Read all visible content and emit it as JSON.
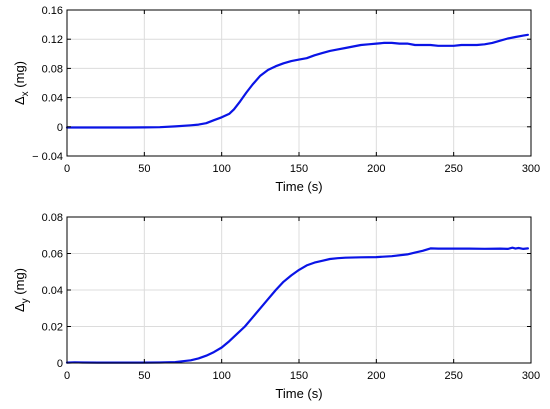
{
  "chart_data": [
    {
      "type": "line",
      "xlabel": "Time (s)",
      "ylabel_main": "Δ",
      "ylabel_sub": "x",
      "ylabel_unit": " (mg)",
      "xlim": [
        0,
        300
      ],
      "ylim": [
        -0.04,
        0.16
      ],
      "xticks": [
        0,
        50,
        100,
        150,
        200,
        250,
        300
      ],
      "yticks": [
        -0.04,
        0,
        0.04,
        0.08,
        0.12,
        0.16
      ],
      "ytick_labels": [
        "− 0.04",
        "0",
        "0.04",
        "0.08",
        "0.12",
        "0.16"
      ],
      "grid": true,
      "series_color": "#0a14e6",
      "series": [
        {
          "x": [
            0,
            10,
            20,
            30,
            40,
            50,
            60,
            70,
            80,
            85,
            90,
            95,
            100,
            105,
            108,
            112,
            116,
            120,
            125,
            130,
            135,
            140,
            145,
            150,
            155,
            160,
            165,
            170,
            175,
            180,
            185,
            190,
            195,
            200,
            205,
            210,
            215,
            220,
            225,
            230,
            235,
            240,
            245,
            250,
            255,
            260,
            265,
            270,
            275,
            280,
            285,
            290,
            295,
            298
          ],
          "y": [
            -0.001,
            -0.001,
            -0.001,
            -0.001,
            -0.001,
            -0.0008,
            -0.0005,
            0.0005,
            0.002,
            0.003,
            0.005,
            0.009,
            0.013,
            0.018,
            0.024,
            0.035,
            0.047,
            0.058,
            0.07,
            0.078,
            0.083,
            0.087,
            0.09,
            0.092,
            0.094,
            0.098,
            0.101,
            0.104,
            0.106,
            0.108,
            0.11,
            0.112,
            0.113,
            0.114,
            0.115,
            0.115,
            0.114,
            0.114,
            0.112,
            0.112,
            0.112,
            0.111,
            0.111,
            0.111,
            0.112,
            0.112,
            0.112,
            0.113,
            0.115,
            0.118,
            0.121,
            0.123,
            0.125,
            0.126
          ]
        }
      ]
    },
    {
      "type": "line",
      "xlabel": "Time (s)",
      "ylabel_main": "Δ",
      "ylabel_sub": "y",
      "ylabel_unit": " (mg)",
      "xlim": [
        0,
        300
      ],
      "ylim": [
        0,
        0.08
      ],
      "xticks": [
        0,
        50,
        100,
        150,
        200,
        250,
        300
      ],
      "yticks": [
        0,
        0.02,
        0.04,
        0.06,
        0.08
      ],
      "ytick_labels": [
        "0",
        "0.02",
        "0.04",
        "0.06",
        "0.08"
      ],
      "grid": true,
      "series_color": "#0a14e6",
      "series": [
        {
          "x": [
            0,
            5,
            10,
            20,
            30,
            40,
            50,
            60,
            70,
            75,
            80,
            85,
            90,
            95,
            100,
            105,
            110,
            115,
            120,
            125,
            130,
            135,
            140,
            145,
            150,
            155,
            160,
            165,
            170,
            175,
            180,
            190,
            200,
            210,
            220,
            225,
            230,
            235,
            240,
            250,
            260,
            270,
            280,
            285,
            288,
            290,
            292,
            295,
            298
          ],
          "y": [
            0.0002,
            0.0004,
            0.0003,
            0.0002,
            0.0002,
            0.0002,
            0.0002,
            0.0003,
            0.0005,
            0.001,
            0.0015,
            0.0025,
            0.004,
            0.006,
            0.0085,
            0.012,
            0.016,
            0.02,
            0.025,
            0.03,
            0.035,
            0.04,
            0.0445,
            0.048,
            0.051,
            0.0535,
            0.055,
            0.056,
            0.057,
            0.0574,
            0.0577,
            0.0579,
            0.058,
            0.0585,
            0.0595,
            0.0605,
            0.0615,
            0.0628,
            0.0627,
            0.0627,
            0.0627,
            0.0626,
            0.0627,
            0.0625,
            0.0632,
            0.0627,
            0.063,
            0.0625,
            0.0628
          ]
        }
      ]
    }
  ]
}
